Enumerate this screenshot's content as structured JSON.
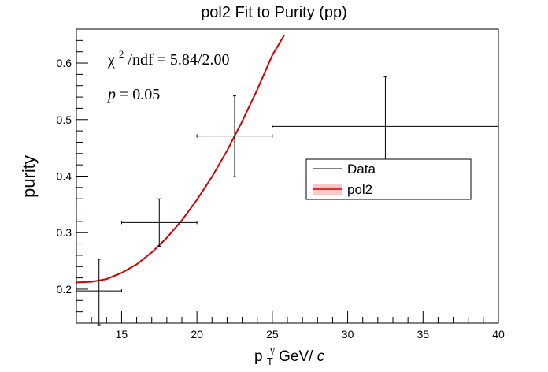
{
  "chart_data": {
    "type": "scatter",
    "title": "pol2 Fit to Purity (pp)",
    "xlabel": {
      "main": "p",
      "sub": "T",
      "sup": "γ",
      "unit": " GeV/",
      "unit_italic": "c"
    },
    "ylabel": "purity",
    "xlim": [
      12,
      40
    ],
    "ylim": [
      0.14,
      0.66
    ],
    "x_ticks": [
      15,
      20,
      25,
      30,
      35,
      40
    ],
    "y_ticks": [
      0.2,
      0.3,
      0.4,
      0.5,
      0.6
    ],
    "x_tick_labels": [
      "15",
      "20",
      "25",
      "30",
      "35",
      "40"
    ],
    "y_tick_labels": [
      "0.2",
      "0.3",
      "0.4",
      "0.5",
      "0.6"
    ],
    "series": [
      {
        "name": "Data",
        "points": [
          {
            "x": 13.5,
            "y": 0.197,
            "xlo": 12.0,
            "xhi": 15.0,
            "ylo": 0.137,
            "yhi": 0.253
          },
          {
            "x": 17.5,
            "y": 0.318,
            "xlo": 15.0,
            "xhi": 20.0,
            "ylo": 0.276,
            "yhi": 0.36
          },
          {
            "x": 22.5,
            "y": 0.471,
            "xlo": 20.0,
            "xhi": 25.0,
            "ylo": 0.399,
            "yhi": 0.542
          },
          {
            "x": 32.5,
            "y": 0.488,
            "xlo": 25.0,
            "xhi": 40.0,
            "ylo": 0.43,
            "yhi": 0.576
          }
        ],
        "color": "#000000"
      },
      {
        "name": "pol2",
        "fit": {
          "x": [
            12.0,
            13.0,
            14.0,
            15.0,
            16.0,
            17.0,
            18.0,
            19.0,
            20.0,
            21.0,
            22.0,
            23.0,
            24.0,
            25.0,
            25.8
          ],
          "y": [
            0.212,
            0.213,
            0.218,
            0.229,
            0.244,
            0.265,
            0.291,
            0.322,
            0.358,
            0.399,
            0.445,
            0.497,
            0.553,
            0.614,
            0.65
          ]
        },
        "color": "#d40000",
        "fill": "#f8c8c8"
      }
    ],
    "legend": {
      "entries": [
        "Data",
        "pol2"
      ],
      "position": "center-right"
    },
    "annotations": {
      "chi2_symbol": "χ",
      "chi2_power": "2",
      "chi2_rest": "/ndf = 5.84/2.00",
      "p_symbol": "p",
      "p_rest": " = 0.05"
    }
  }
}
